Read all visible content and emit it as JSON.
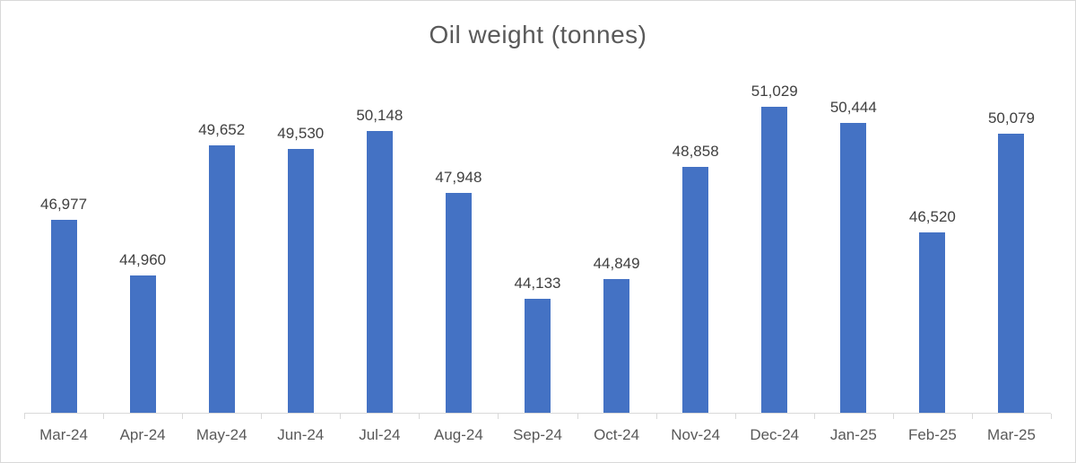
{
  "chart_data": {
    "type": "bar",
    "title": "Oil weight (tonnes)",
    "categories": [
      "Mar-24",
      "Apr-24",
      "May-24",
      "Jun-24",
      "Jul-24",
      "Aug-24",
      "Sep-24",
      "Oct-24",
      "Nov-24",
      "Dec-24",
      "Jan-25",
      "Feb-25",
      "Mar-25"
    ],
    "values": [
      46977,
      44960,
      49652,
      49530,
      50148,
      47948,
      44133,
      44849,
      48858,
      51029,
      50444,
      46520,
      50079
    ],
    "data_labels": [
      "46,977",
      "44,960",
      "49,652",
      "49,530",
      "50,148",
      "47,948",
      "44,133",
      "44,849",
      "48,858",
      "51,029",
      "50,444",
      "46,520",
      "50,079"
    ],
    "xlabel": "",
    "ylabel": "",
    "ylim": [
      40000,
      52000
    ],
    "grid": false,
    "legend_position": "none",
    "colors": {
      "bar": "#4472C4",
      "title_text": "#595959",
      "data_label_text": "#404040",
      "axis_label_text": "#595959",
      "axis_line": "#d9d9d9",
      "chart_border": "#d9d9d9",
      "background": "#ffffff"
    }
  }
}
